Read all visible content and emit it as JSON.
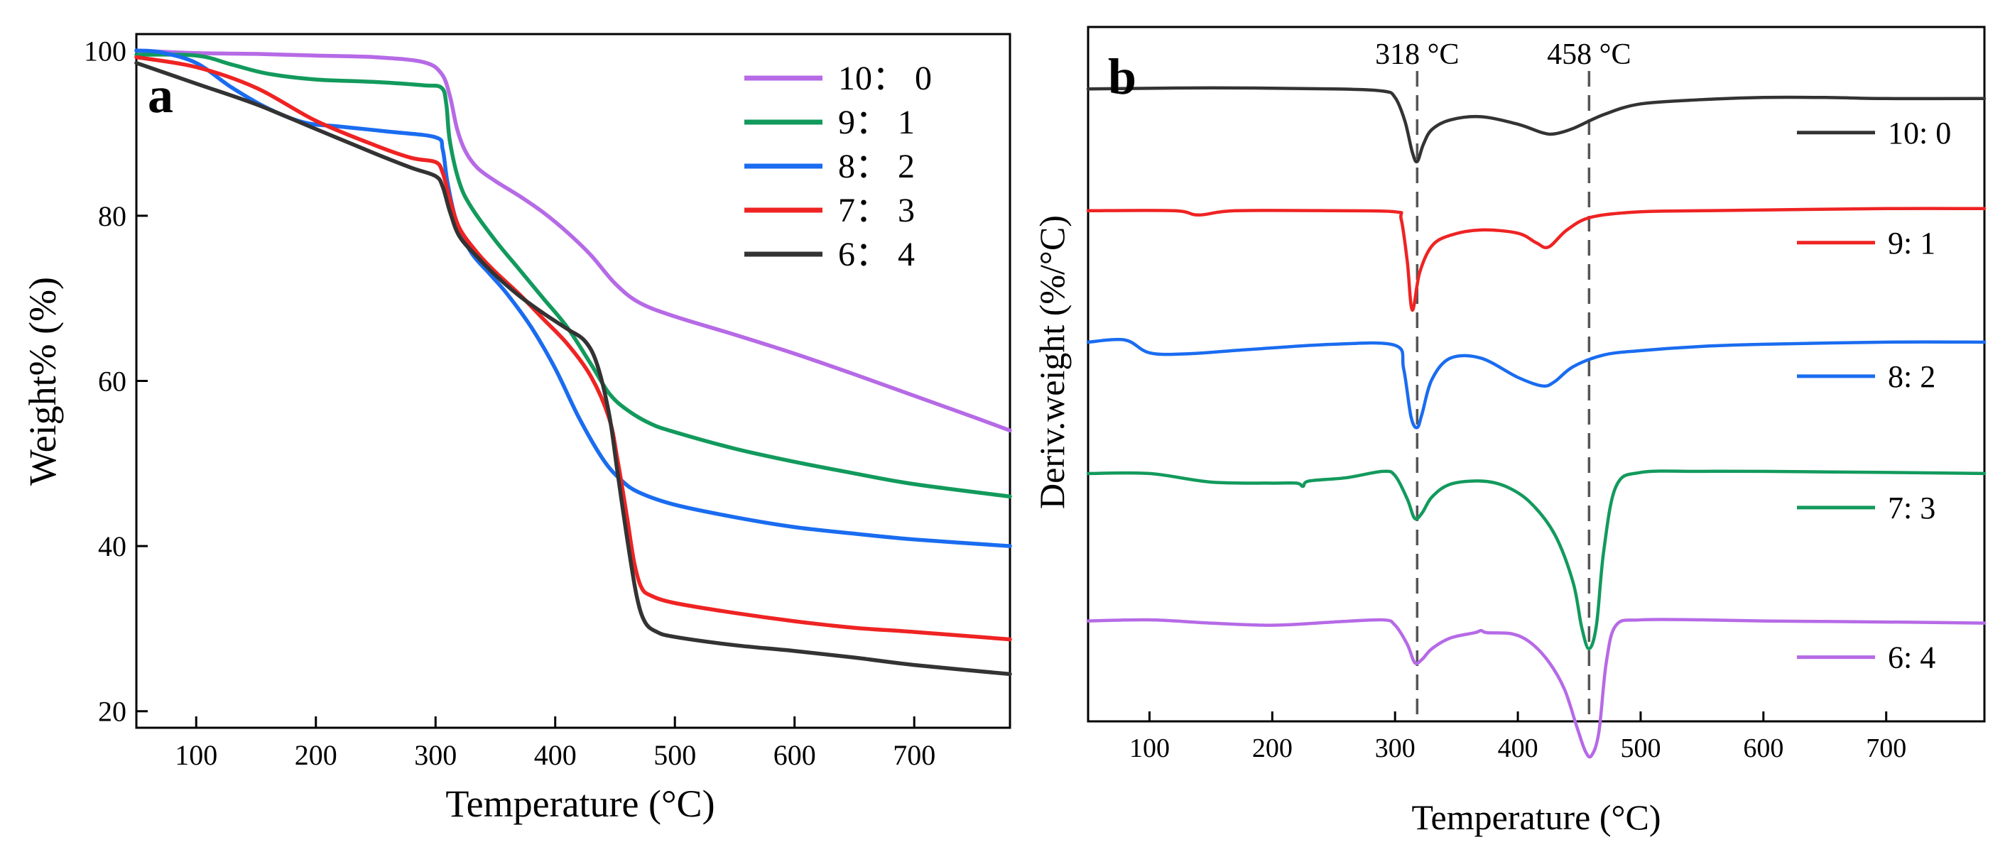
{
  "figure": {
    "description_free": true
  },
  "colors": {
    "purple": "#b66ae6",
    "green": "#129a5c",
    "blue": "#1a6cf0",
    "red": "#ef2323",
    "black": "#333333",
    "axis": "#000000",
    "dash": "#555555"
  },
  "chart_data": [
    {
      "id": "a",
      "type": "line",
      "panel_label": "a",
      "title": "",
      "xlabel": "Temperature (°C)",
      "ylabel": "Weight% (%)",
      "xlim": [
        50,
        780
      ],
      "ylim": [
        18,
        102
      ],
      "xticks": [
        100,
        200,
        300,
        400,
        500,
        600,
        700
      ],
      "yticks": [
        20,
        40,
        60,
        80,
        100
      ],
      "legend_position": "top-right",
      "series": [
        {
          "name": "10： 0",
          "color": "#b66ae6",
          "x": [
            50,
            100,
            150,
            200,
            250,
            290,
            305,
            312,
            318,
            325,
            335,
            350,
            370,
            390,
            410,
            430,
            450,
            470,
            500,
            550,
            600,
            650,
            700,
            750,
            780
          ],
          "y": [
            100,
            99.7,
            99.6,
            99.4,
            99.2,
            98.6,
            97.2,
            94.5,
            90.5,
            87.8,
            85.8,
            84.2,
            82.4,
            80.4,
            78,
            75.2,
            71.8,
            69.5,
            67.8,
            65.6,
            63.3,
            60.8,
            58.2,
            55.6,
            54
          ]
        },
        {
          "name": "9： 1",
          "color": "#129a5c",
          "x": [
            50,
            100,
            130,
            160,
            200,
            250,
            290,
            305,
            309,
            312,
            320,
            330,
            350,
            370,
            390,
            410,
            430,
            445,
            460,
            480,
            500,
            550,
            600,
            650,
            700,
            780
          ],
          "y": [
            99.5,
            99.4,
            98.3,
            97.2,
            96.5,
            96.2,
            95.8,
            95.5,
            93.5,
            89,
            84,
            81,
            77,
            73.5,
            70,
            66.5,
            62,
            58.5,
            56.5,
            54.8,
            53.8,
            51.8,
            50.2,
            48.8,
            47.5,
            46
          ]
        },
        {
          "name": "8： 2",
          "color": "#1a6cf0",
          "x": [
            50,
            70,
            100,
            130,
            160,
            190,
            220,
            260,
            300,
            306,
            310,
            318,
            330,
            345,
            360,
            380,
            400,
            420,
            440,
            455,
            470,
            500,
            550,
            600,
            650,
            700,
            780
          ],
          "y": [
            100,
            99.8,
            98.5,
            95.5,
            93,
            91.3,
            90.8,
            90.2,
            89.5,
            88,
            84,
            79,
            75.5,
            73,
            70.5,
            66.5,
            61.5,
            55.5,
            50.5,
            48,
            46.5,
            45,
            43.5,
            42.3,
            41.5,
            40.8,
            40
          ]
        },
        {
          "name": "7： 3",
          "color": "#ef2323",
          "x": [
            50,
            100,
            150,
            200,
            250,
            280,
            300,
            306,
            312,
            320,
            335,
            350,
            370,
            390,
            410,
            430,
            445,
            452,
            460,
            466,
            472,
            480,
            500,
            550,
            600,
            650,
            700,
            780
          ],
          "y": [
            99.2,
            98,
            95.5,
            91.5,
            88.5,
            87,
            86.5,
            85.2,
            82,
            78.5,
            75.5,
            73.2,
            70.5,
            67.5,
            64.5,
            60.5,
            55.5,
            50.5,
            43.5,
            38,
            35,
            34,
            33.1,
            31.9,
            30.9,
            30.1,
            29.6,
            28.7
          ]
        },
        {
          "name": "6： 4",
          "color": "#333333",
          "x": [
            50,
            100,
            150,
            200,
            250,
            280,
            300,
            306,
            312,
            320,
            335,
            350,
            370,
            390,
            410,
            425,
            435,
            445,
            452,
            460,
            468,
            475,
            485,
            500,
            550,
            600,
            650,
            700,
            780
          ],
          "y": [
            98.5,
            96,
            93.5,
            90.5,
            87.5,
            85.8,
            84.8,
            83.5,
            80.5,
            77.5,
            75,
            72.8,
            70.3,
            68.2,
            66.3,
            64.8,
            62,
            56,
            49,
            41,
            34,
            30.8,
            29.6,
            29,
            28,
            27.3,
            26.5,
            25.6,
            24.5
          ]
        }
      ]
    },
    {
      "id": "b",
      "type": "line",
      "panel_label": "b",
      "title": "",
      "xlabel": "Temperature (°C)",
      "ylabel": "Deriv.weight (%/°C)",
      "xlim": [
        50,
        780
      ],
      "ylim": [
        -6.5,
        0
      ],
      "yticks_shown": false,
      "xticks": [
        100,
        200,
        300,
        400,
        500,
        600,
        700
      ],
      "legend_position": "right",
      "annotations": [
        {
          "x": 318,
          "text": "318 °C",
          "style": "dashed-vertical"
        },
        {
          "x": 458,
          "text": "458 °C",
          "style": "dashed-vertical"
        }
      ],
      "series": [
        {
          "name": "10: 0",
          "color": "#333333",
          "x": [
            50,
            150,
            250,
            290,
            300,
            308,
            314,
            318,
            323,
            330,
            345,
            370,
            400,
            420,
            430,
            445,
            470,
            500,
            550,
            600,
            650,
            700,
            780
          ],
          "y": [
            -0.58,
            -0.57,
            -0.58,
            -0.6,
            -0.66,
            -0.88,
            -1.17,
            -1.26,
            -1.1,
            -0.96,
            -0.87,
            -0.84,
            -0.91,
            -0.99,
            -1.0,
            -0.95,
            -0.82,
            -0.72,
            -0.68,
            -0.66,
            -0.66,
            -0.67,
            -0.67
          ]
        },
        {
          "name": "9: 1",
          "color": "#ef2323",
          "x": [
            50,
            120,
            140,
            170,
            250,
            300,
            305,
            310,
            314,
            320,
            330,
            345,
            370,
            400,
            415,
            425,
            440,
            460,
            500,
            550,
            700,
            780
          ],
          "y": [
            -1.72,
            -1.72,
            -1.76,
            -1.72,
            -1.72,
            -1.73,
            -1.8,
            -2.2,
            -2.65,
            -2.3,
            -2.05,
            -1.95,
            -1.9,
            -1.93,
            -2.02,
            -2.06,
            -1.9,
            -1.78,
            -1.73,
            -1.72,
            -1.7,
            -1.7
          ]
        },
        {
          "name": "8: 2",
          "color": "#1a6cf0",
          "x": [
            50,
            80,
            100,
            130,
            180,
            250,
            300,
            307,
            313,
            318,
            322,
            330,
            345,
            370,
            400,
            420,
            430,
            445,
            470,
            500,
            550,
            600,
            700,
            780
          ],
          "y": [
            -2.95,
            -2.93,
            -3.05,
            -3.06,
            -3.02,
            -2.97,
            -2.98,
            -3.2,
            -3.65,
            -3.75,
            -3.62,
            -3.3,
            -3.1,
            -3.1,
            -3.28,
            -3.36,
            -3.32,
            -3.18,
            -3.07,
            -3.03,
            -2.99,
            -2.97,
            -2.95,
            -2.95
          ]
        },
        {
          "name": "7: 3",
          "color": "#129a5c",
          "x": [
            50,
            100,
            150,
            200,
            220,
            225,
            230,
            260,
            290,
            300,
            310,
            316,
            322,
            330,
            345,
            370,
            390,
            410,
            430,
            445,
            452,
            458,
            464,
            470,
            480,
            500,
            550,
            600,
            700,
            780
          ],
          "y": [
            -4.18,
            -4.18,
            -4.26,
            -4.27,
            -4.27,
            -4.3,
            -4.25,
            -4.22,
            -4.16,
            -4.2,
            -4.42,
            -4.6,
            -4.55,
            -4.4,
            -4.28,
            -4.25,
            -4.3,
            -4.45,
            -4.75,
            -5.2,
            -5.62,
            -5.82,
            -5.6,
            -4.9,
            -4.3,
            -4.17,
            -4.16,
            -4.16,
            -4.17,
            -4.18
          ]
        },
        {
          "name": "6: 4",
          "color": "#b66ae6",
          "x": [
            50,
            100,
            150,
            200,
            250,
            290,
            300,
            310,
            316,
            322,
            330,
            345,
            365,
            370,
            375,
            395,
            410,
            425,
            438,
            448,
            455,
            460,
            466,
            472,
            480,
            500,
            550,
            600,
            700,
            780
          ],
          "y": [
            -5.56,
            -5.55,
            -5.58,
            -5.6,
            -5.57,
            -5.55,
            -5.6,
            -5.78,
            -5.95,
            -5.92,
            -5.82,
            -5.72,
            -5.67,
            -5.65,
            -5.67,
            -5.68,
            -5.76,
            -5.94,
            -6.2,
            -6.55,
            -6.78,
            -6.82,
            -6.6,
            -5.95,
            -5.6,
            -5.55,
            -5.55,
            -5.56,
            -5.57,
            -5.58
          ]
        }
      ]
    }
  ]
}
